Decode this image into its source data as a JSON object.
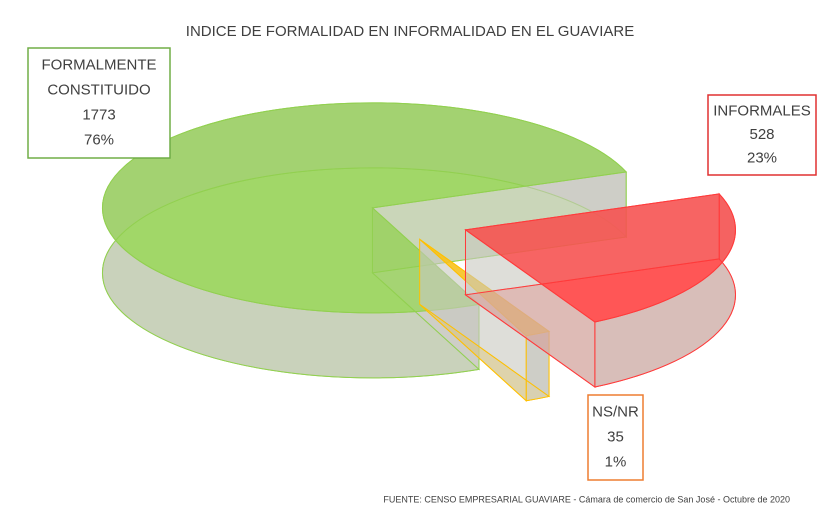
{
  "chart_data": {
    "type": "pie",
    "title": "INDICE DE FORMALIDAD EN INFORMALIDAD EN EL GUAVIARE",
    "categories": [
      "FORMALMENTE CONSTITUIDO",
      "INFORMALES",
      "NS/NR"
    ],
    "values": [
      1773,
      528,
      35
    ],
    "percent_values": [
      76,
      23,
      1
    ],
    "percent_labels": [
      "76%",
      "23%",
      "1%"
    ],
    "colors": [
      "#92d050",
      "#ff3b3b",
      "#ffc000"
    ],
    "source": "FUENTE: CENSO EMPRESARIAL GUAVIARE - Cámara de comercio de San José - Octubre de 2020"
  }
}
